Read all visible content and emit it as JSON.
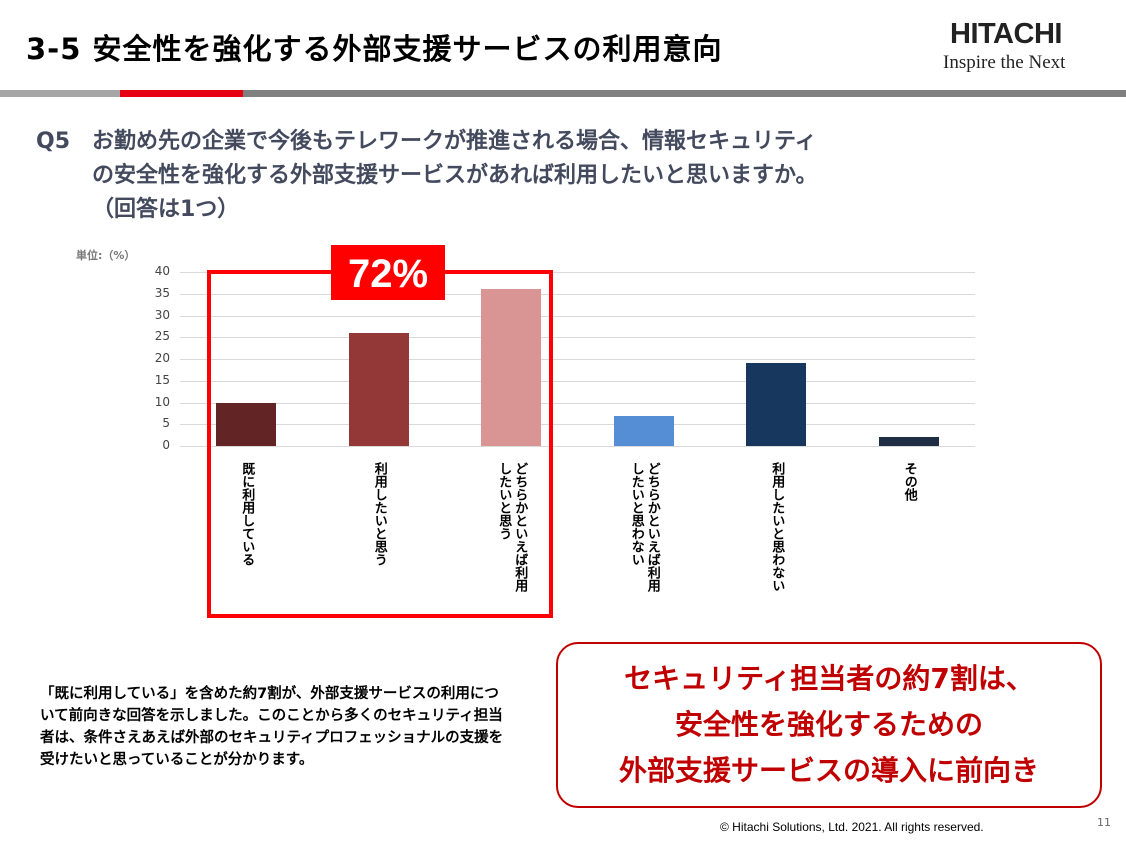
{
  "header": {
    "title": "3-5  安全性を強化する外部支援サービスの利用意向",
    "logo_main": "HITACHI",
    "logo_tagline": "Inspire the Next"
  },
  "question": {
    "number": "Q5",
    "text": "お勤め先の企業で今後もテレワークが推進される場合、情報セキュリティ\nの安全性を強化する外部支援サービスがあれば利用したいと思いますか。\n（回答は1つ）"
  },
  "chart_data": {
    "type": "bar",
    "unit_label": "単位:（%）",
    "ylim": [
      0,
      40
    ],
    "yticks": [
      0,
      5,
      10,
      15,
      20,
      25,
      30,
      35,
      40
    ],
    "grid": true,
    "categories": [
      "既に利用している",
      "利用したいと思う",
      "どちらかといえば利用\nしたいと思う",
      "どちらかといえば利用\nしたいと思わない",
      "利用したいと思わない",
      "その他"
    ],
    "values": [
      10,
      26,
      36,
      7,
      19,
      2
    ],
    "colors": [
      "#632426",
      "#943737",
      "#d99594",
      "#558ed5",
      "#17375e",
      "#1f2d45"
    ]
  },
  "highlight": {
    "label": "72%",
    "color": "#ff0000"
  },
  "body_text": "「既に利用している」を含めた約7割が、外部支援サービスの利用について前向きな回答を示しました。このことから多くのセキュリティ担当者は、条件さえあえば外部のセキュリティプロフェッショナルの支援を受けたいと思っていることが分かります。",
  "callout": {
    "lines": [
      "セキュリティ担当者の約7割は、",
      "安全性を強化するための",
      "外部支援サービスの導入に前向き"
    ]
  },
  "footer": {
    "copyright": "© Hitachi Solutions, Ltd. 2021. All rights reserved.",
    "page": "11"
  }
}
